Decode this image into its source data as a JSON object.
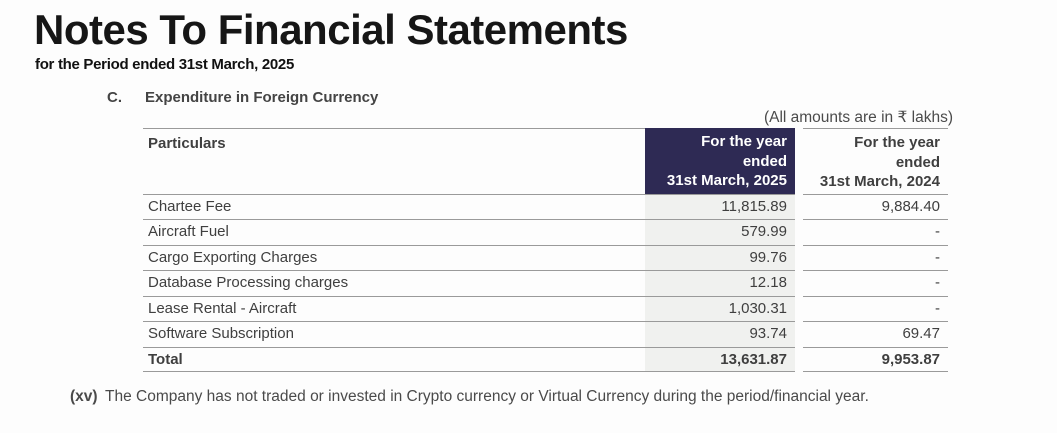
{
  "page": {
    "title": "Notes To Financial Statements",
    "subtitle": "for the Period ended 31st March, 2025"
  },
  "section": {
    "index": "C.",
    "heading": "Expenditure in Foreign Currency",
    "amounts_note": "(All amounts are in ₹ lakhs)"
  },
  "table": {
    "header": {
      "particulars": "Particulars",
      "col_2025": {
        "line1": "For the year",
        "line2": "ended",
        "line3": "31st March, 2025"
      },
      "col_2024": {
        "line1": "For the year",
        "line2": "ended",
        "line3": "31st March, 2024"
      }
    },
    "rows": [
      {
        "label": "Chartee Fee",
        "fy2025": "11,815.89",
        "fy2024": "9,884.40"
      },
      {
        "label": "Aircraft Fuel",
        "fy2025": "579.99",
        "fy2024": "-"
      },
      {
        "label": "Cargo Exporting Charges",
        "fy2025": "99.76",
        "fy2024": "-"
      },
      {
        "label": "Database Processing charges",
        "fy2025": "12.18",
        "fy2024": "-"
      },
      {
        "label": "Lease Rental - Aircraft",
        "fy2025": "1,030.31",
        "fy2024": "-"
      },
      {
        "label": "Software Subscription",
        "fy2025": "93.74",
        "fy2024": "69.47"
      }
    ],
    "total": {
      "label": "Total",
      "fy2025": "13,631.87",
      "fy2024": "9,953.87"
    }
  },
  "footnote": {
    "index": "(xv)",
    "text": "The Company has not traded or invested in Crypto currency or Virtual Currency during the period/financial year."
  },
  "colors": {
    "header_bg": "#2e2a54",
    "column_highlight_bg": "#f0f1ef",
    "border": "#9a9a9a",
    "text": "#3f3f3f"
  }
}
